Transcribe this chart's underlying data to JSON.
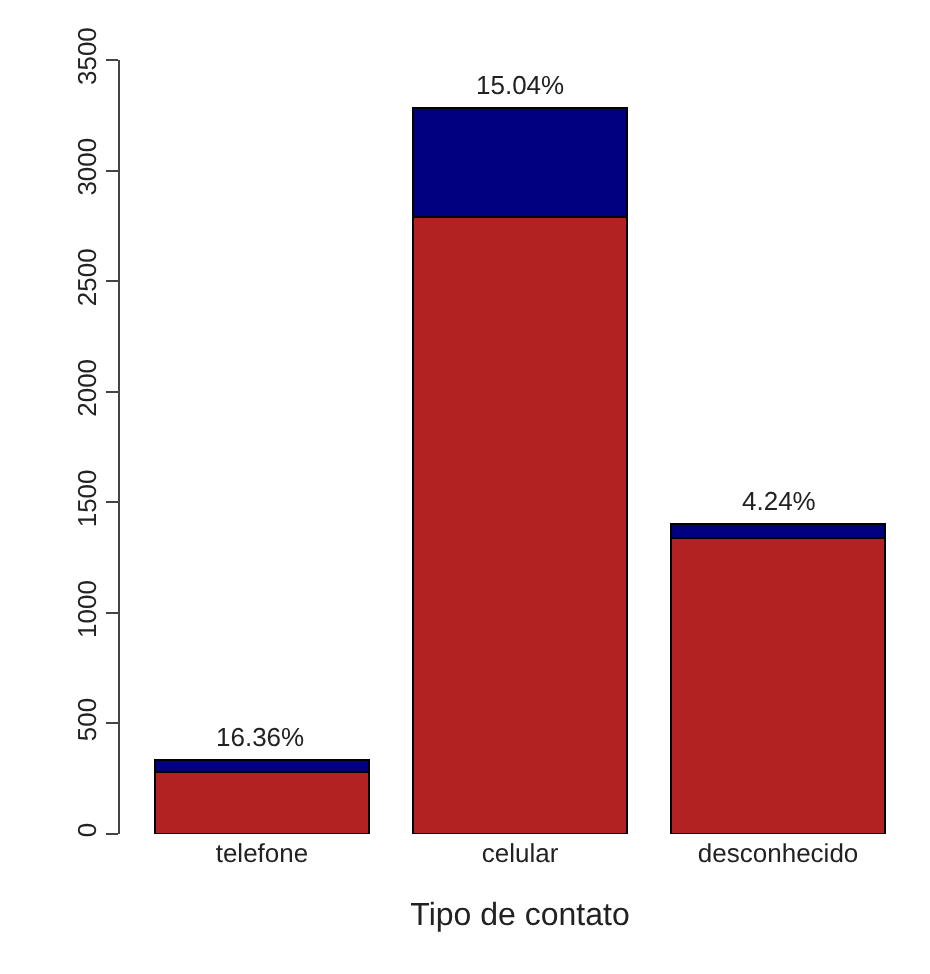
{
  "chart_data": {
    "type": "bar",
    "stacked": true,
    "xlabel": "Tipo de contato",
    "categories": [
      "telefone",
      "celular",
      "desconhecido"
    ],
    "series": [
      {
        "color": "#b22222",
        "values": [
          280,
          2790,
          1340
        ]
      },
      {
        "color": "#000080",
        "values": [
          55,
          495,
          60
        ]
      }
    ],
    "ylim": [
      0,
      3500
    ],
    "yticks": [
      0,
      500,
      1000,
      1500,
      2000,
      2500,
      3000,
      3500
    ],
    "legend": false,
    "annotations": [
      {
        "text": "16.36%",
        "x": "telefone",
        "y": 335
      },
      {
        "text": "15.04%",
        "x": "celular",
        "y": 3285
      },
      {
        "text": "4.24%",
        "x": "desconhecido",
        "y": 1400
      }
    ]
  }
}
